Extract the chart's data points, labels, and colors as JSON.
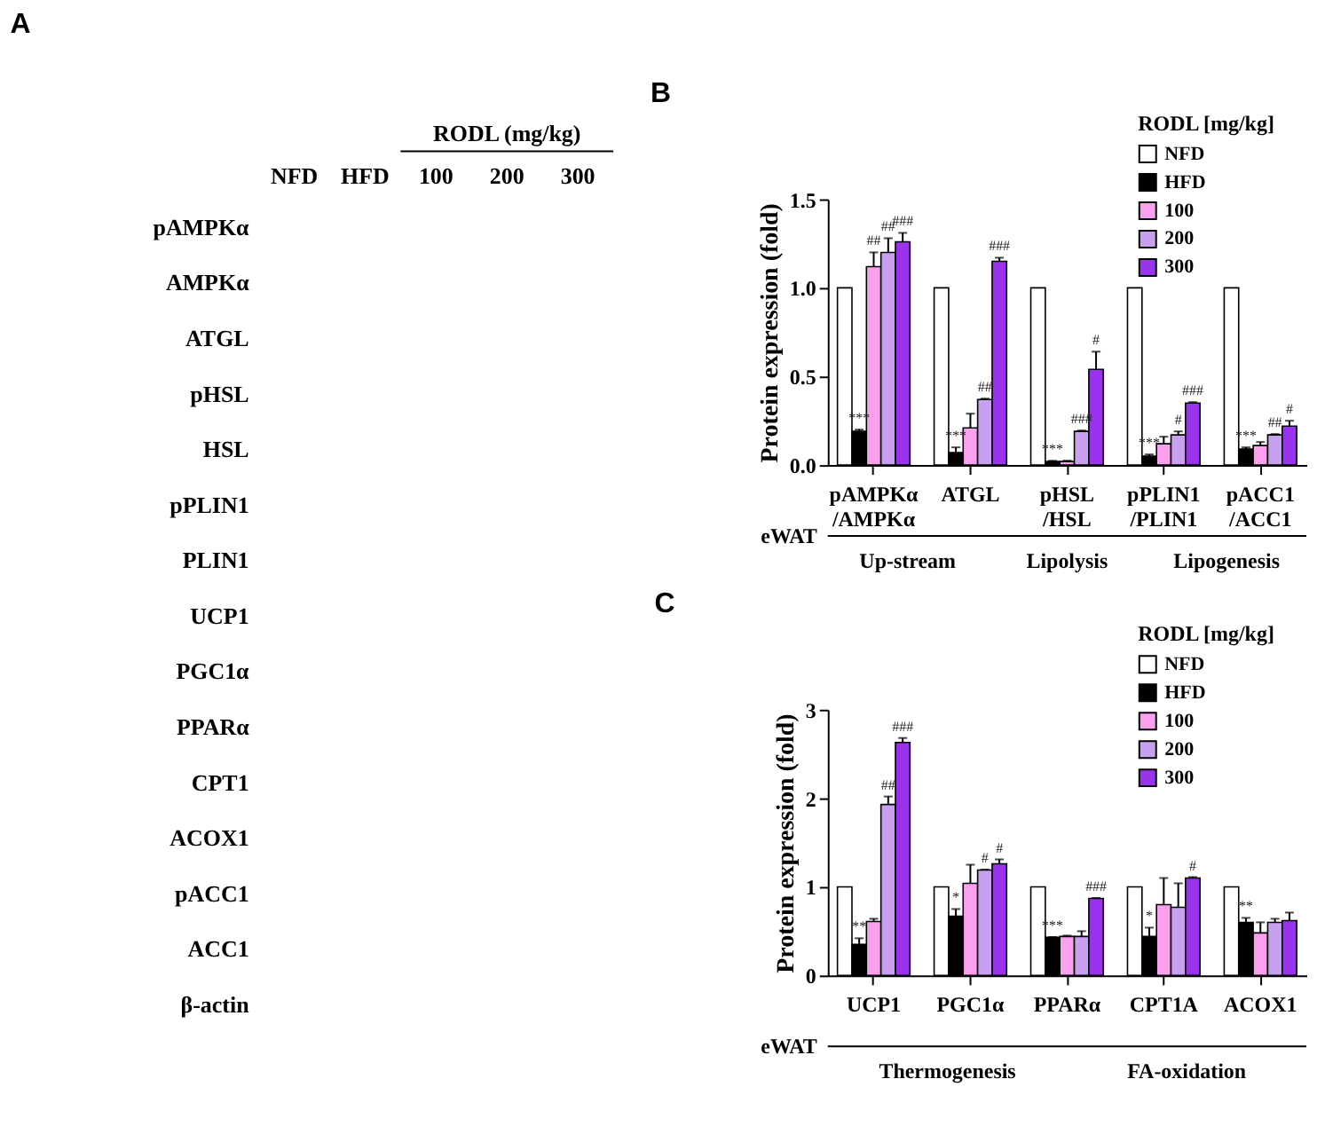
{
  "chart_data": [
    {
      "type": "other",
      "title": "A",
      "subtitle": "RODL (mg/kg)",
      "categories": [
        "NFD",
        "HFD",
        "100",
        "200",
        "300"
      ],
      "y_categories": [
        "pAMPKα",
        "AMPKα",
        "ATGL",
        "pHSL",
        "HSL",
        "pPLIN1",
        "PLIN1",
        "UCP1",
        "PGC1α",
        "PPARα",
        "CPT1",
        "ACOX1",
        "pACC1",
        "ACC1",
        "β-actin"
      ]
    },
    {
      "type": "bar",
      "title": "B",
      "ylabel": "Protein expression (fold)",
      "legend_title": "RODL [mg/kg]",
      "legend": "top right",
      "grid": false,
      "categories": [
        "pAMPKα /AMPKα",
        "ATGL",
        "pHSL /HSL",
        "pPLIN1 /PLIN1",
        "pACC1 /ACC1"
      ],
      "ylim": [
        0,
        1.5
      ],
      "yticks": [
        {
          "value": 0,
          "label": "0.0"
        },
        {
          "value": 0.5,
          "label": "0.5"
        },
        {
          "value": 1,
          "label": "1.0"
        },
        {
          "value": 1.5,
          "label": "1.5"
        }
      ],
      "series": [
        {
          "name": "NFD",
          "color": "#ffffff",
          "values": [
            1,
            1,
            1,
            1,
            1
          ]
        },
        {
          "name": "HFD",
          "color": "#000000",
          "values": [
            0.19,
            0.07,
            0.02,
            0.05,
            0.09
          ],
          "errors": [
            [
              0.19,
              0.2
            ],
            [
              0.07,
              0.1
            ],
            [
              0.02,
              0.025
            ],
            [
              0.05,
              0.06
            ],
            [
              0.09,
              0.1
            ]
          ],
          "value_labels": [
            "***",
            "***",
            "***",
            "***",
            "***"
          ]
        },
        {
          "name": "100",
          "color": "#f9a0ef",
          "values": [
            1.12,
            0.21,
            0.02,
            0.12,
            0.11
          ],
          "errors": [
            [
              1.12,
              1.2
            ],
            [
              0.21,
              0.29
            ],
            [
              0.02,
              0.025
            ],
            [
              0.12,
              0.16
            ],
            [
              0.11,
              0.13
            ]
          ],
          "value_labels": [
            "##",
            null,
            null,
            null,
            null
          ]
        },
        {
          "name": "200",
          "color": "#c7a0f0",
          "values": [
            1.2,
            0.37,
            0.19,
            0.17,
            0.17
          ],
          "errors": [
            [
              1.2,
              1.28
            ],
            [
              0.37,
              0.375
            ],
            [
              0.19,
              0.195
            ],
            [
              0.17,
              0.19
            ],
            [
              0.17,
              0.175
            ]
          ],
          "value_labels": [
            "##",
            "##",
            "###",
            "#",
            "##"
          ]
        },
        {
          "name": "300",
          "color": "#9a33ee",
          "values": [
            1.26,
            1.15,
            0.54,
            0.35,
            0.22
          ],
          "errors": [
            [
              1.26,
              1.31
            ],
            [
              1.15,
              1.17
            ],
            [
              0.54,
              0.64
            ],
            [
              0.35,
              0.355
            ],
            [
              0.22,
              0.25
            ]
          ],
          "value_labels": [
            "###",
            "###",
            "#",
            "###",
            "#"
          ]
        }
      ],
      "annotations": [
        "eWAT",
        "Up-stream",
        "Lipolysis",
        "Lipogenesis"
      ]
    },
    {
      "type": "bar",
      "title": "C",
      "ylabel": "Protein expression (fold)",
      "legend_title": "RODL [mg/kg]",
      "legend": "top right",
      "grid": false,
      "categories": [
        "UCP1",
        "PGC1α",
        "PPARα",
        "CPT1A",
        "ACOX1"
      ],
      "ylim": [
        0,
        3
      ],
      "yticks": [
        0,
        1,
        2,
        3
      ],
      "series": [
        {
          "name": "NFD",
          "color": "#ffffff",
          "values": [
            1,
            1,
            1,
            1,
            1
          ]
        },
        {
          "name": "HFD",
          "color": "#000000",
          "values": [
            0.35,
            0.67,
            0.43,
            0.44,
            0.6
          ],
          "errors": [
            [
              0.35,
              0.42
            ],
            [
              0.67,
              0.75
            ],
            [
              0.43,
              0.435
            ],
            [
              0.44,
              0.54
            ],
            [
              0.6,
              0.65
            ]
          ],
          "value_labels": [
            "**",
            "*",
            "***",
            "*",
            "**"
          ]
        },
        {
          "name": "100",
          "color": "#f9a0ef",
          "values": [
            0.61,
            1.04,
            0.44,
            0.8,
            0.48
          ],
          "errors": [
            [
              0.61,
              0.64
            ],
            [
              1.04,
              1.25
            ],
            [
              0.44,
              0.45
            ],
            [
              0.8,
              1.1
            ],
            [
              0.48,
              0.6
            ]
          ],
          "value_labels": [
            null,
            null,
            null,
            null,
            null
          ]
        },
        {
          "name": "200",
          "color": "#c7a0f0",
          "values": [
            1.93,
            1.19,
            0.44,
            0.77,
            0.6
          ],
          "errors": [
            [
              1.93,
              2.02
            ],
            [
              1.19,
              1.195
            ],
            [
              0.44,
              0.5
            ],
            [
              0.77,
              1.04
            ],
            [
              0.6,
              0.64
            ]
          ],
          "value_labels": [
            "##",
            "#",
            null,
            null,
            null
          ]
        },
        {
          "name": "300",
          "color": "#9a33ee",
          "values": [
            2.63,
            1.26,
            0.87,
            1.1,
            0.62
          ],
          "errors": [
            [
              2.63,
              2.68
            ],
            [
              1.26,
              1.31
            ],
            [
              0.87,
              0.875
            ],
            [
              1.1,
              1.11
            ],
            [
              0.62,
              0.71
            ]
          ],
          "value_labels": [
            "###",
            "#",
            "###",
            "#",
            null
          ]
        }
      ],
      "annotations": [
        "eWAT",
        "Thermogenesis",
        "FA-oxidation"
      ]
    }
  ]
}
